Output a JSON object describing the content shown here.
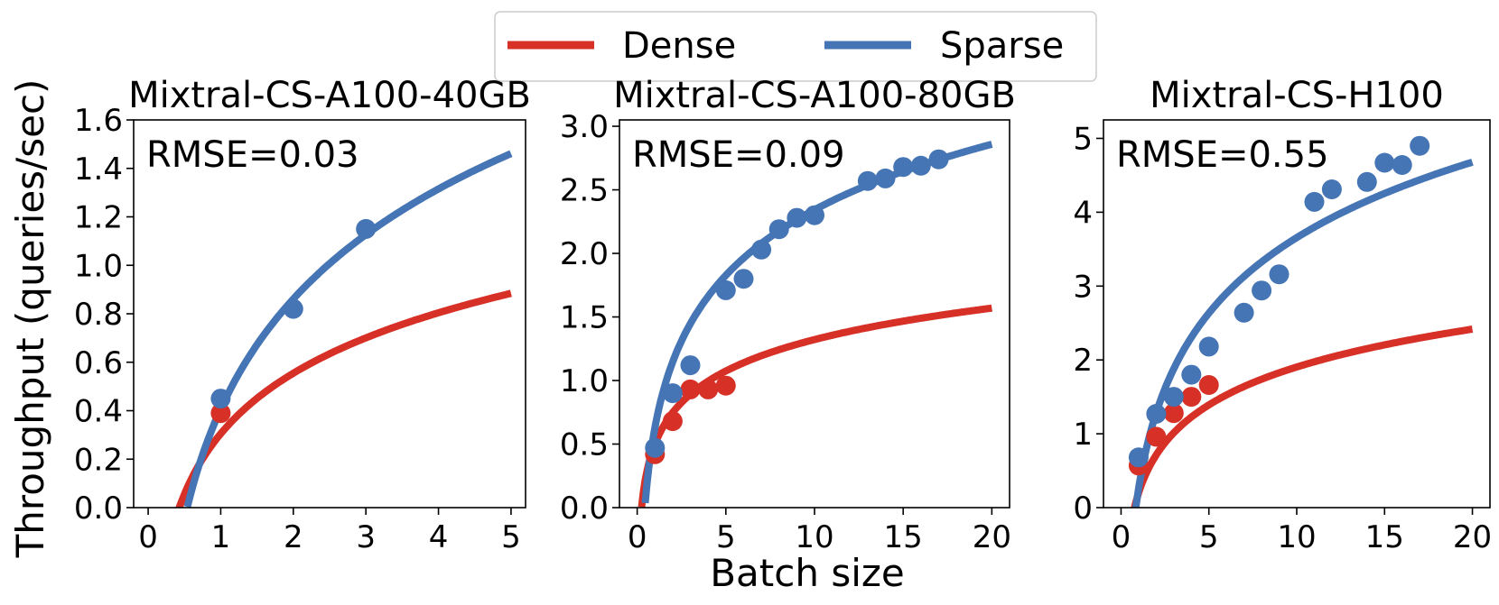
{
  "figure": {
    "ylabel": "Throughput (queries/sec)",
    "xlabel": "Batch size"
  },
  "legend": {
    "placement": "top-center",
    "items": [
      {
        "label": "Dense",
        "color": "#d73027"
      },
      {
        "label": "Sparse",
        "color": "#4575b4"
      }
    ]
  },
  "chart_data": [
    {
      "type": "scatter",
      "title": "Mixtral-CS-A100-40GB",
      "annotation": "RMSE=0.03",
      "xlim": [
        -0.2,
        5.2
      ],
      "ylim": [
        0,
        1.6
      ],
      "xticks": [
        "0",
        "1",
        "2",
        "3",
        "4",
        "5"
      ],
      "xtick_values": [
        0,
        1,
        2,
        3,
        4,
        5
      ],
      "yticks": [
        "0.0",
        "0.2",
        "0.4",
        "0.6",
        "0.8",
        "1.0",
        "1.2",
        "1.4",
        "1.6"
      ],
      "ytick_values": [
        0,
        0.2,
        0.4,
        0.6,
        0.8,
        1.0,
        1.2,
        1.4,
        1.6
      ],
      "series": [
        {
          "name": "Dense",
          "color": "#d73027",
          "points": [
            [
              1,
              0.39
            ]
          ],
          "fit": {
            "form": "a*ln(x)+b",
            "a": 0.36,
            "b": 0.305,
            "x_range": [
              0.25,
              5
            ]
          }
        },
        {
          "name": "Sparse",
          "color": "#4575b4",
          "points": [
            [
              1,
              0.45
            ],
            [
              2,
              0.82
            ],
            [
              3,
              1.15
            ]
          ],
          "fit": {
            "form": "a*ln(x)+b",
            "a": 0.655,
            "b": 0.407,
            "x_range": [
              0.54,
              5
            ]
          }
        }
      ]
    },
    {
      "type": "scatter",
      "title": "Mixtral-CS-A100-80GB",
      "annotation": "RMSE=0.09",
      "xlim": [
        -1,
        21
      ],
      "ylim": [
        0,
        3.05
      ],
      "xticks": [
        "0",
        "5",
        "10",
        "15",
        "20"
      ],
      "xtick_values": [
        0,
        5,
        10,
        15,
        20
      ],
      "yticks": [
        "0.0",
        "0.5",
        "1.0",
        "1.5",
        "2.0",
        "2.5",
        "3.0"
      ],
      "ytick_values": [
        0,
        0.5,
        1.0,
        1.5,
        2.0,
        2.5,
        3.0
      ],
      "series": [
        {
          "name": "Dense",
          "color": "#d73027",
          "points": [
            [
              1,
              0.42
            ],
            [
              2,
              0.68
            ],
            [
              3,
              0.93
            ],
            [
              4,
              0.93
            ],
            [
              5,
              0.96
            ]
          ],
          "fit": {
            "form": "a*ln(x)+b",
            "a": 0.357,
            "b": 0.5,
            "x_range": [
              0.25,
              20
            ]
          }
        },
        {
          "name": "Sparse",
          "color": "#4575b4",
          "points": [
            [
              1,
              0.47
            ],
            [
              2,
              0.9
            ],
            [
              3,
              1.12
            ],
            [
              5,
              1.71
            ],
            [
              6,
              1.8
            ],
            [
              7,
              2.03
            ],
            [
              8,
              2.19
            ],
            [
              9,
              2.28
            ],
            [
              10,
              2.3
            ],
            [
              13,
              2.57
            ],
            [
              14,
              2.59
            ],
            [
              15,
              2.68
            ],
            [
              16,
              2.69
            ],
            [
              17,
              2.74
            ]
          ],
          "fit": {
            "form": "a*ln(x)+b",
            "a": 0.744,
            "b": 0.63,
            "x_range": [
              0.45,
              20
            ]
          }
        }
      ]
    },
    {
      "type": "scatter",
      "title": "Mixtral-CS-H100",
      "annotation": "RMSE=0.55",
      "xlim": [
        -1,
        21
      ],
      "ylim": [
        0,
        5.25
      ],
      "xticks": [
        "0",
        "5",
        "10",
        "15",
        "20"
      ],
      "xtick_values": [
        0,
        5,
        10,
        15,
        20
      ],
      "yticks": [
        "0",
        "1",
        "2",
        "3",
        "4",
        "5"
      ],
      "ytick_values": [
        0,
        1,
        2,
        3,
        4,
        5
      ],
      "series": [
        {
          "name": "Dense",
          "color": "#d73027",
          "points": [
            [
              1,
              0.57
            ],
            [
              2,
              0.96
            ],
            [
              3,
              1.28
            ],
            [
              4,
              1.5
            ],
            [
              5,
              1.66
            ]
          ],
          "fit": {
            "form": "a*ln(x)+b",
            "a": 0.74,
            "b": 0.2,
            "x_range": [
              0.3,
              20
            ]
          }
        },
        {
          "name": "Sparse",
          "color": "#4575b4",
          "points": [
            [
              1,
              0.68
            ],
            [
              2,
              1.27
            ],
            [
              3,
              1.5
            ],
            [
              4,
              1.8
            ],
            [
              5,
              2.18
            ],
            [
              7,
              2.64
            ],
            [
              8,
              2.94
            ],
            [
              9,
              3.16
            ],
            [
              11,
              4.14
            ],
            [
              12,
              4.31
            ],
            [
              14,
              4.41
            ],
            [
              15,
              4.67
            ],
            [
              16,
              4.64
            ],
            [
              17,
              4.9
            ]
          ],
          "fit": {
            "form": "a*ln(x)+b",
            "a": 1.475,
            "b": 0.26,
            "x_range": [
              0.84,
              20
            ]
          }
        }
      ]
    }
  ]
}
